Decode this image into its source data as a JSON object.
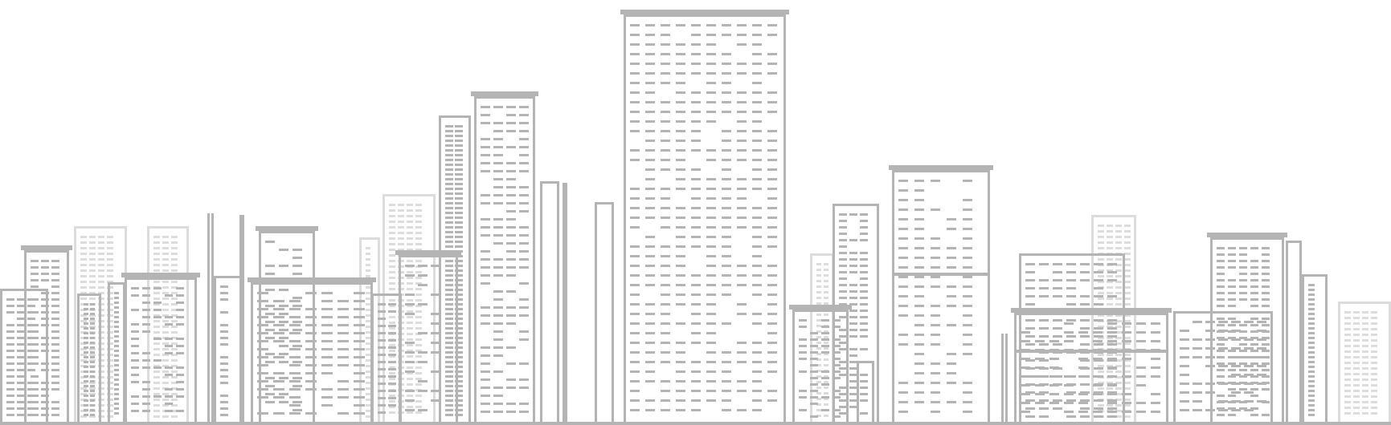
{
  "scene": {
    "subject": "city-skyline-line-illustration"
  },
  "palette": {
    "background": "#ffffff",
    "building": "#b4b4b4",
    "building_faint": "#dcdcdc",
    "ground": "#b4b4b4"
  }
}
